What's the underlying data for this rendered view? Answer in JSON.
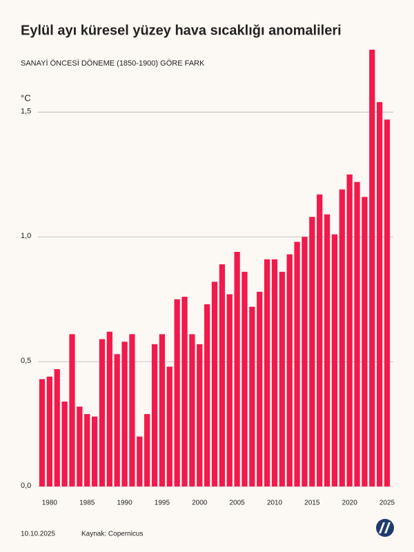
{
  "chart_data": {
    "type": "bar",
    "title": "Eylül ayı küresel yüzey hava sıcaklığı anomalileri",
    "subtitle": "SANAYİ ÖNCESİ DÖNEME (1850-1900) GÖRE FARK",
    "y_label": "°C",
    "x": [
      1979,
      1980,
      1981,
      1982,
      1983,
      1984,
      1985,
      1986,
      1987,
      1988,
      1989,
      1990,
      1991,
      1992,
      1993,
      1994,
      1995,
      1996,
      1997,
      1998,
      1999,
      2000,
      2001,
      2002,
      2003,
      2004,
      2005,
      2006,
      2007,
      2008,
      2009,
      2010,
      2011,
      2012,
      2013,
      2014,
      2015,
      2016,
      2017,
      2018,
      2019,
      2020,
      2021,
      2022,
      2023,
      2024,
      2025
    ],
    "values": [
      0.43,
      0.44,
      0.47,
      0.34,
      0.61,
      0.32,
      0.29,
      0.28,
      0.59,
      0.62,
      0.53,
      0.58,
      0.61,
      0.2,
      0.29,
      0.57,
      0.61,
      0.48,
      0.75,
      0.76,
      0.61,
      0.57,
      0.73,
      0.82,
      0.89,
      0.77,
      0.94,
      0.86,
      0.72,
      0.78,
      0.91,
      0.91,
      0.86,
      0.93,
      0.98,
      1.0,
      1.08,
      1.17,
      1.09,
      1.01,
      1.19,
      1.25,
      1.22,
      1.16,
      1.75,
      1.54,
      1.47
    ],
    "color": "#f2194b",
    "xlim": [
      1979,
      2025
    ],
    "xticks": [
      1980,
      1985,
      1990,
      1995,
      2000,
      2005,
      2010,
      2015,
      2020,
      2025
    ],
    "ylim": [
      0,
      1.75
    ],
    "yticks": [
      {
        "value": 0,
        "label": "0,0"
      },
      {
        "value": 0.5,
        "label": "0,5"
      },
      {
        "value": 1,
        "label": "1,0"
      },
      {
        "value": 1.5,
        "label": "1,5"
      }
    ],
    "grid": true
  },
  "footer": {
    "date": "10.10.2025",
    "source": "Kaynak: Copernicus"
  }
}
